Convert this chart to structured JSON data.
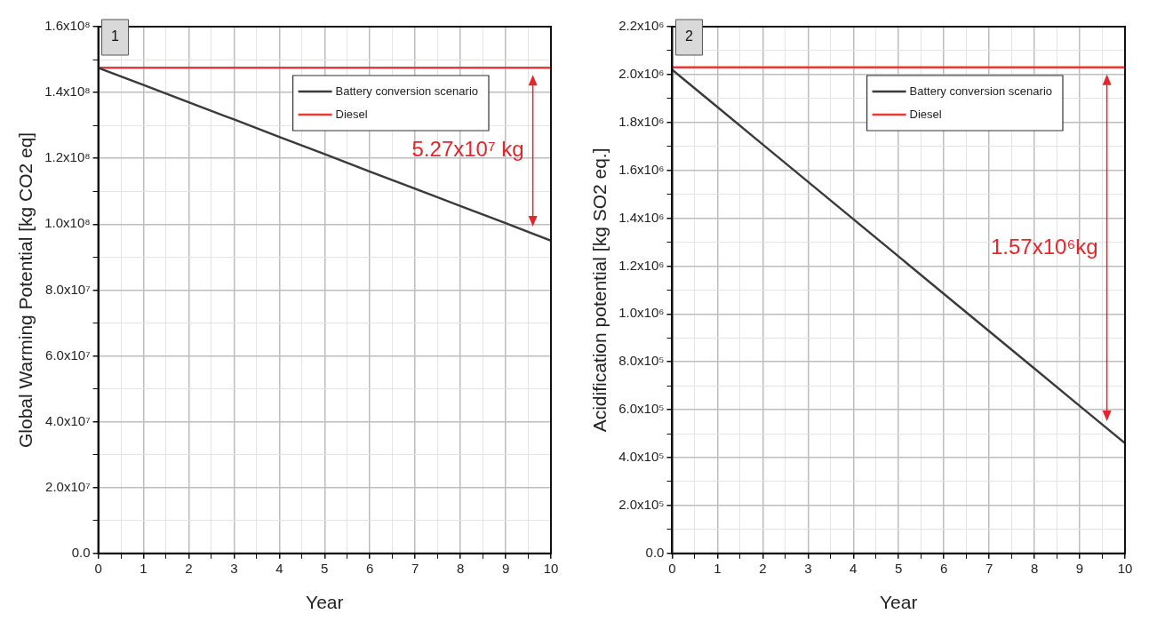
{
  "chart_data": [
    {
      "type": "line",
      "title": "1",
      "xlabel": "Year",
      "ylabel": "Global Warming Potential [kg CO2 eq]",
      "grid": true,
      "legend": "top right",
      "marker": "none",
      "line_style": "solid",
      "xlim": [
        0,
        10
      ],
      "ylim": [
        0,
        160000000
      ],
      "xticks": [
        0,
        {
          "value": 0.5,
          "label": null
        },
        1,
        {
          "value": 1.5,
          "label": null
        },
        2,
        {
          "value": 2.5,
          "label": null
        },
        3,
        {
          "value": 3.5,
          "label": null
        },
        4,
        {
          "value": 4.5,
          "label": null
        },
        5,
        {
          "value": 5.5,
          "label": null
        },
        6,
        {
          "value": 6.5,
          "label": null
        },
        7,
        {
          "value": 7.5,
          "label": null
        },
        8,
        {
          "value": 8.5,
          "label": null
        },
        9,
        {
          "value": 9.5,
          "label": null
        },
        10
      ],
      "yticks": [
        {
          "value": 0,
          "label": "0.0"
        },
        {
          "value": 10000000,
          "label": null
        },
        {
          "value": 20000000,
          "label": "2.0x10⁷"
        },
        {
          "value": 30000000,
          "label": null
        },
        {
          "value": 40000000,
          "label": "4.0x10⁷"
        },
        {
          "value": 50000000,
          "label": null
        },
        {
          "value": 60000000,
          "label": "6.0x10⁷"
        },
        {
          "value": 70000000,
          "label": null
        },
        {
          "value": 80000000,
          "label": "8.0x10⁷"
        },
        {
          "value": 90000000,
          "label": null
        },
        {
          "value": 100000000,
          "label": "1.0x10⁸"
        },
        {
          "value": 110000000,
          "label": null
        },
        {
          "value": 120000000,
          "label": "1.2x10⁸"
        },
        {
          "value": 130000000,
          "label": null
        },
        {
          "value": 140000000,
          "label": "1.4x10⁸"
        },
        {
          "value": 150000000,
          "label": null
        },
        {
          "value": 160000000,
          "label": "1.6x10⁸"
        }
      ],
      "series": [
        {
          "name": "Battery conversion scenario",
          "color": "#3a3a3a",
          "values": [
            147500000,
            142300000,
            137000000,
            131800000,
            126500000,
            121300000,
            116000000,
            110800000,
            105500000,
            100300000,
            95000000
          ]
        },
        {
          "name": "Diesel",
          "color": "#e8393c",
          "values": [
            147500000,
            147500000,
            147500000,
            147500000,
            147500000,
            147500000,
            147500000,
            147500000,
            147500000,
            147500000,
            147500000
          ]
        }
      ],
      "x": [
        0,
        1,
        2,
        3,
        4,
        5,
        6,
        7,
        8,
        9,
        10
      ],
      "annotations": [
        "5.27x10⁷ kg"
      ]
    },
    {
      "type": "line",
      "title": "2",
      "xlabel": "Year",
      "ylabel": "Acidification potential [kg SO2 eq.]",
      "grid": true,
      "legend": "top right",
      "marker": "none",
      "line_style": "solid",
      "xlim": [
        0,
        10
      ],
      "ylim": [
        0,
        2200000
      ],
      "xticks": [
        0,
        {
          "value": 0.5,
          "label": null
        },
        1,
        {
          "value": 1.5,
          "label": null
        },
        2,
        {
          "value": 2.5,
          "label": null
        },
        3,
        {
          "value": 3.5,
          "label": null
        },
        4,
        {
          "value": 4.5,
          "label": null
        },
        5,
        {
          "value": 5.5,
          "label": null
        },
        6,
        {
          "value": 6.5,
          "label": null
        },
        7,
        {
          "value": 7.5,
          "label": null
        },
        8,
        {
          "value": 8.5,
          "label": null
        },
        9,
        {
          "value": 9.5,
          "label": null
        },
        10
      ],
      "yticks": [
        {
          "value": 0,
          "label": "0.0"
        },
        {
          "value": 100000,
          "label": null
        },
        {
          "value": 200000,
          "label": "2.0x10⁵"
        },
        {
          "value": 300000,
          "label": null
        },
        {
          "value": 400000,
          "label": "4.0x10⁵"
        },
        {
          "value": 500000,
          "label": null
        },
        {
          "value": 600000,
          "label": "6.0x10⁵"
        },
        {
          "value": 700000,
          "label": null
        },
        {
          "value": 800000,
          "label": "8.0x10⁵"
        },
        {
          "value": 900000,
          "label": null
        },
        {
          "value": 1000000,
          "label": "1.0x10⁶"
        },
        {
          "value": 1100000,
          "label": null
        },
        {
          "value": 1200000,
          "label": "1.2x10⁶"
        },
        {
          "value": 1300000,
          "label": null
        },
        {
          "value": 1400000,
          "label": "1.4x10⁶"
        },
        {
          "value": 1500000,
          "label": null
        },
        {
          "value": 1600000,
          "label": "1.6x10⁶"
        },
        {
          "value": 1700000,
          "label": null
        },
        {
          "value": 1800000,
          "label": "1.8x10⁶"
        },
        {
          "value": 1900000,
          "label": null
        },
        {
          "value": 2000000,
          "label": "2.0x10⁶"
        },
        {
          "value": 2100000,
          "label": null
        },
        {
          "value": 2200000,
          "label": "2.2x10⁶"
        }
      ],
      "series": [
        {
          "name": "Battery conversion scenario",
          "color": "#3a3a3a",
          "values": [
            2020000,
            1864000,
            1708000,
            1552000,
            1396000,
            1240000,
            1084000,
            928000,
            772000,
            616000,
            460000
          ]
        },
        {
          "name": "Diesel",
          "color": "#e8393c",
          "values": [
            2030000,
            2030000,
            2030000,
            2030000,
            2030000,
            2030000,
            2030000,
            2030000,
            2030000,
            2030000,
            2030000
          ]
        }
      ],
      "x": [
        0,
        1,
        2,
        3,
        4,
        5,
        6,
        7,
        8,
        9,
        10
      ],
      "annotations": [
        "1.57x10⁶kg"
      ]
    }
  ]
}
